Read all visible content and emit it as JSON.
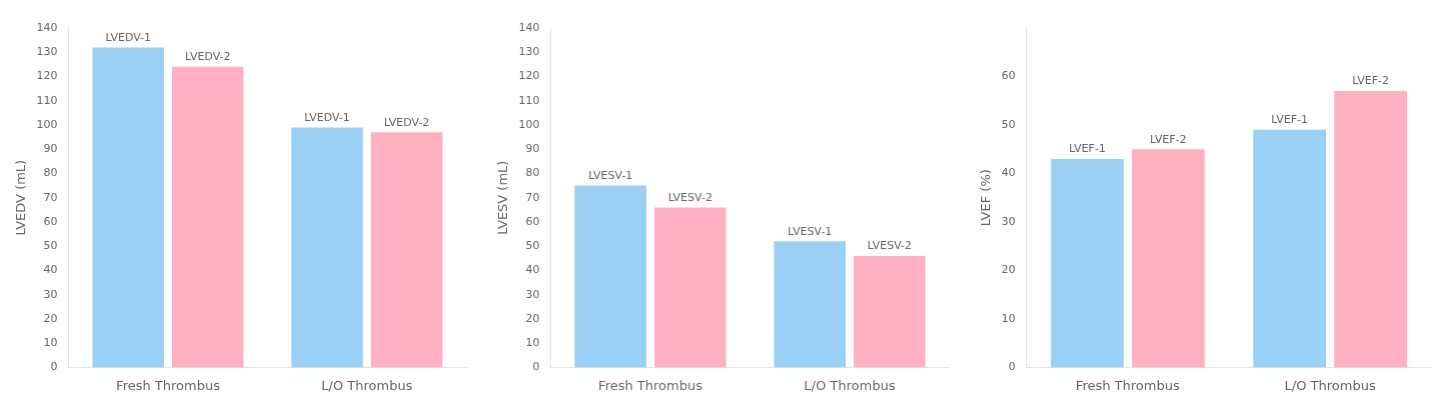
{
  "chart_data": [
    {
      "type": "bar",
      "ylabel": "LVEDV (mL)",
      "categories": [
        "Fresh Thrombus",
        "L/O Thrombus"
      ],
      "series": [
        {
          "name": "LVEDV-1",
          "values": [
            132,
            99
          ]
        },
        {
          "name": "LVEDV-2",
          "values": [
            124,
            97
          ]
        }
      ],
      "ylim": [
        0,
        140
      ],
      "yticks": [
        0,
        10,
        20,
        30,
        40,
        50,
        60,
        70,
        80,
        90,
        100,
        110,
        120,
        130,
        140
      ],
      "grid": false
    },
    {
      "type": "bar",
      "ylabel": "LVESV (mL)",
      "categories": [
        "Fresh Thrombus",
        "L/O Thrombus"
      ],
      "series": [
        {
          "name": "LVESV-1",
          "values": [
            75,
            52
          ]
        },
        {
          "name": "LVESV-2",
          "values": [
            66,
            46
          ]
        }
      ],
      "ylim": [
        0,
        140
      ],
      "yticks": [
        0,
        10,
        20,
        30,
        40,
        50,
        60,
        70,
        80,
        90,
        100,
        110,
        120,
        130,
        140
      ],
      "grid": false
    },
    {
      "type": "bar",
      "ylabel": "LVEF (%)",
      "categories": [
        "Fresh Thrombus",
        "L/O Thrombus"
      ],
      "series": [
        {
          "name": "LVEF-1",
          "values": [
            43,
            49
          ]
        },
        {
          "name": "LVEF-2",
          "values": [
            45,
            57
          ]
        }
      ],
      "ylim": [
        0,
        70
      ],
      "yticks": [
        0,
        10,
        20,
        30,
        40,
        50,
        60
      ],
      "grid": false
    }
  ]
}
